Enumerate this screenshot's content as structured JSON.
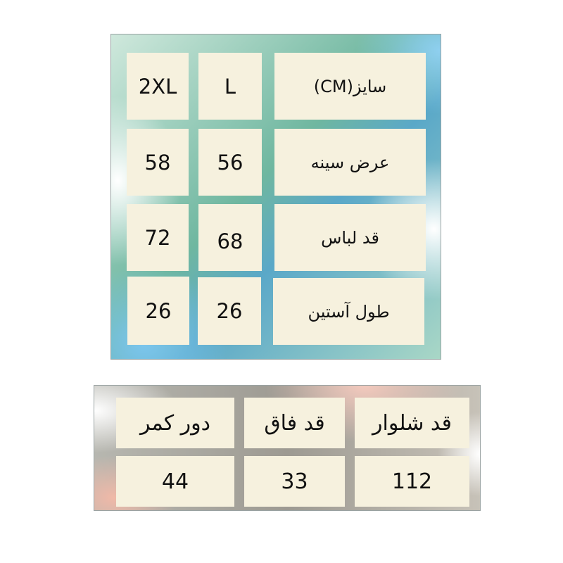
{
  "top_table": {
    "header": {
      "label": "سایز(CM)",
      "sizes": [
        "L",
        "2XL"
      ]
    },
    "rows": [
      {
        "label": "عرض سینه",
        "values": [
          "56",
          "58"
        ]
      },
      {
        "label": "قد لباس",
        "values": [
          "68",
          "72"
        ]
      },
      {
        "label": "طول آستین",
        "values": [
          "26",
          "26"
        ]
      }
    ]
  },
  "bottom_table": {
    "headers": [
      "قد شلوار",
      "قد فاق",
      "دور کمر"
    ],
    "values": [
      "112",
      "33",
      "44"
    ]
  },
  "colors": {
    "cell": "#f6f1de",
    "top_panel": "#6fb7a0",
    "bottom_panel": "#9d9a92"
  }
}
